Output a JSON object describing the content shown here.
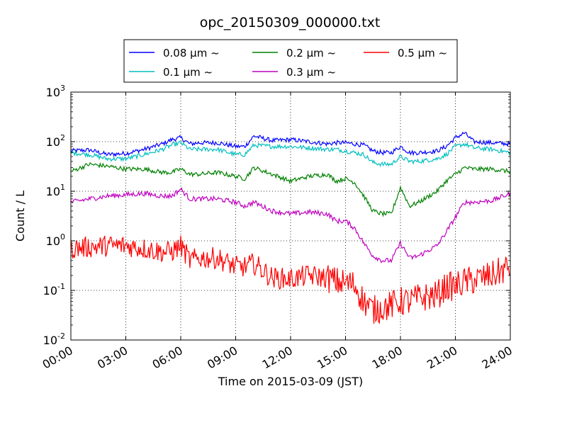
{
  "chart_data": {
    "type": "line",
    "title": "opc_20150309_000000.txt",
    "xlabel": "Time on 2015-03-09 (JST)",
    "ylabel": "Count / L",
    "y_scale": "log",
    "ylim": [
      0.01,
      1000
    ],
    "xlim": [
      "00:00",
      "24:00"
    ],
    "x_ticks": [
      "00:00",
      "03:00",
      "06:00",
      "09:00",
      "12:00",
      "15:00",
      "18:00",
      "21:00",
      "24:00"
    ],
    "y_ticks": [
      {
        "base": "10",
        "exp": "-2"
      },
      {
        "base": "10",
        "exp": "-1"
      },
      {
        "base": "10",
        "exp": "0"
      },
      {
        "base": "10",
        "exp": "1"
      },
      {
        "base": "10",
        "exp": "2"
      },
      {
        "base": "10",
        "exp": "3"
      }
    ],
    "grid": true,
    "legend_position": "top-center",
    "x_hours": [
      0,
      1,
      2,
      3,
      4,
      5,
      5.5,
      6,
      6.5,
      7,
      8,
      9,
      9.5,
      10,
      11,
      12,
      13,
      14,
      14.5,
      15,
      15.5,
      16,
      16.5,
      17,
      17.5,
      18,
      18.5,
      19,
      20,
      20.5,
      21,
      21.5,
      22,
      23,
      24
    ],
    "series": [
      {
        "name": "0.08 µm ~",
        "color": "#0000ff",
        "values": [
          65,
          68,
          55,
          58,
          70,
          90,
          110,
          120,
          90,
          95,
          95,
          80,
          80,
          130,
          105,
          110,
          100,
          90,
          95,
          95,
          90,
          85,
          65,
          60,
          60,
          80,
          60,
          60,
          65,
          80,
          120,
          150,
          100,
          95,
          90
        ]
      },
      {
        "name": "0.1 µm ~",
        "color": "#00bfbf",
        "values": [
          60,
          55,
          45,
          45,
          55,
          70,
          85,
          95,
          70,
          70,
          70,
          55,
          55,
          85,
          80,
          80,
          75,
          70,
          70,
          65,
          60,
          55,
          38,
          35,
          35,
          50,
          40,
          40,
          45,
          55,
          80,
          90,
          75,
          70,
          60
        ]
      },
      {
        "name": "0.2 µm ~",
        "color": "#008000",
        "values": [
          25,
          35,
          32,
          28,
          28,
          24,
          24,
          28,
          22,
          22,
          24,
          20,
          18,
          30,
          22,
          16,
          20,
          22,
          16,
          18,
          15,
          8,
          4,
          3.5,
          3.5,
          12,
          5,
          6,
          10,
          16,
          22,
          30,
          28,
          28,
          25
        ]
      },
      {
        "name": "0.3 µm ~",
        "color": "#bf00bf",
        "values": [
          6,
          7,
          8,
          8.5,
          9,
          8,
          8,
          11,
          7,
          7,
          7,
          6,
          5,
          6,
          4,
          3.5,
          3.8,
          3.5,
          2.5,
          2.5,
          1.8,
          0.9,
          0.5,
          0.4,
          0.4,
          0.9,
          0.45,
          0.5,
          0.8,
          1.5,
          3,
          6,
          6,
          6.5,
          9
        ]
      },
      {
        "name": "0.5 µm ~",
        "color": "#ff0000",
        "values": [
          0.7,
          0.75,
          0.8,
          0.8,
          0.7,
          0.6,
          0.6,
          0.8,
          0.4,
          0.45,
          0.45,
          0.3,
          0.3,
          0.35,
          0.18,
          0.17,
          0.2,
          0.18,
          0.15,
          0.14,
          0.13,
          0.06,
          0.04,
          0.045,
          0.05,
          0.06,
          0.06,
          0.07,
          0.08,
          0.12,
          0.12,
          0.15,
          0.16,
          0.2,
          0.3
        ]
      }
    ]
  }
}
